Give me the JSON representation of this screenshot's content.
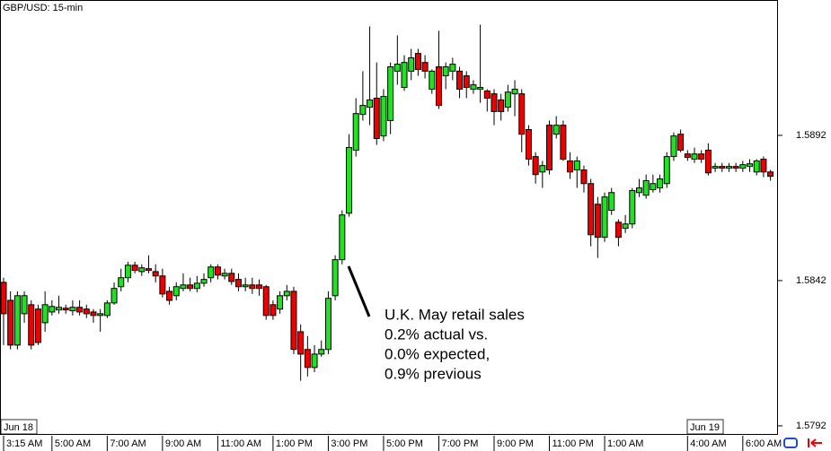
{
  "chart_data": {
    "type": "candlestick",
    "title": "GBP/USD: 15-min",
    "date_labels": [
      "Jun 18",
      "Jun 19"
    ],
    "annotation": [
      "U.K. May retail sales",
      "0.2% actual vs.",
      "0.0% expected,",
      "0.9% previous"
    ],
    "up_color": "#22e022",
    "down_color": "#ee0000",
    "ylim": [
      1.57892,
      1.59386
    ],
    "yticks": [
      1.5892,
      1.5842,
      1.5792
    ],
    "categories": [
      "3:15 AM",
      null,
      null,
      null,
      null,
      null,
      null,
      "5:00 AM",
      null,
      null,
      null,
      null,
      null,
      null,
      null,
      "7:00 AM",
      null,
      null,
      null,
      null,
      null,
      null,
      null,
      "9:00 AM",
      null,
      null,
      null,
      null,
      null,
      null,
      null,
      "11:00 AM",
      null,
      null,
      null,
      null,
      null,
      null,
      null,
      "1:00 PM",
      null,
      null,
      null,
      null,
      null,
      null,
      null,
      "3:00 PM",
      null,
      null,
      null,
      null,
      null,
      null,
      null,
      "5:00 PM",
      null,
      null,
      null,
      null,
      null,
      null,
      null,
      "7:00 PM",
      null,
      null,
      null,
      null,
      null,
      null,
      null,
      "9:00 PM",
      null,
      null,
      null,
      null,
      null,
      null,
      null,
      "11:00 PM",
      null,
      null,
      null,
      null,
      null,
      null,
      null,
      "1:00 AM",
      null,
      null,
      null,
      null,
      null,
      null,
      null,
      null,
      null,
      null,
      null,
      "4:00 AM",
      null,
      null,
      null,
      null,
      null,
      null,
      null,
      "6:00 AM",
      null,
      null,
      null,
      null
    ],
    "open": [
      1.58414,
      1.58352,
      1.58198,
      1.58306,
      1.58337,
      1.58322,
      1.58275,
      1.58312,
      1.58319,
      1.58325,
      1.58316,
      1.58328,
      1.58322,
      1.58312,
      1.583,
      1.583,
      1.58343,
      1.58399,
      1.5843,
      1.58473,
      1.58451,
      1.58461,
      1.58451,
      1.58436,
      1.58383,
      1.58368,
      1.58393,
      1.58405,
      1.58393,
      1.58411,
      1.5843,
      1.58467,
      1.58436,
      1.58445,
      1.58424,
      1.58399,
      1.58405,
      1.58405,
      1.58399,
      1.58337,
      1.58322,
      1.58368,
      1.58383,
      1.58244,
      1.58183,
      1.58121,
      1.58167,
      1.58183,
      1.58368,
      1.58492,
      1.58652,
      1.58869,
      1.58992,
      1.59017,
      1.59048,
      1.58918,
      1.58971,
      1.59141,
      1.59085,
      1.59141,
      1.59202,
      1.59171,
      1.59079,
      1.59156,
      1.59125,
      1.59141,
      1.59141,
      1.59125,
      1.59079,
      1.59079,
      1.59073,
      1.59063,
      1.59042,
      1.59017,
      1.59063,
      1.59063,
      1.5894,
      1.58847,
      1.58794,
      1.58955,
      1.58924,
      1.58955,
      1.58832,
      1.58801,
      1.58801,
      1.58754,
      1.58683,
      1.58569,
      1.58662,
      1.58621,
      1.586,
      1.58615,
      1.58723,
      1.58714,
      1.58733,
      1.58739,
      1.58754,
      1.58847,
      1.58924,
      1.58856,
      1.58838,
      1.58856,
      1.58869,
      1.58807,
      1.58813,
      1.58807,
      1.58813,
      1.58807,
      1.58813,
      1.58794,
      1.58838,
      1.58794
    ],
    "high": [
      1.5843,
      1.58383,
      1.58383,
      1.58383,
      1.58352,
      1.58337,
      1.58383,
      1.58352,
      1.58368,
      1.58337,
      1.58352,
      1.58352,
      1.58337,
      1.58322,
      1.58322,
      1.58352,
      1.58414,
      1.58461,
      1.58485,
      1.58485,
      1.58476,
      1.58507,
      1.58476,
      1.58461,
      1.58399,
      1.58414,
      1.58445,
      1.5843,
      1.58436,
      1.58445,
      1.58476,
      1.58476,
      1.58461,
      1.58461,
      1.58445,
      1.5843,
      1.5843,
      1.58424,
      1.58405,
      1.58352,
      1.58383,
      1.58405,
      1.58399,
      1.58269,
      1.58229,
      1.58198,
      1.58214,
      1.58383,
      1.58507,
      1.58662,
      1.58924,
      1.59048,
      1.59141,
      1.59295,
      1.59171,
      1.59079,
      1.59171,
      1.59264,
      1.59196,
      1.59218,
      1.59218,
      1.59196,
      1.59147,
      1.5928,
      1.59171,
      1.59187,
      1.59156,
      1.59141,
      1.5911,
      1.59301,
      1.59079,
      1.59079,
      1.59063,
      1.59094,
      1.5911,
      1.59079,
      1.58955,
      1.58862,
      1.58832,
      1.58971,
      1.58986,
      1.58971,
      1.58862,
      1.58847,
      1.58816,
      1.5877,
      1.58708,
      1.58723,
      1.58739,
      1.58631,
      1.58646,
      1.58739,
      1.5877,
      1.58785,
      1.58785,
      1.58785,
      1.58862,
      1.5893,
      1.5894,
      1.58869,
      1.58878,
      1.58869,
      1.58893,
      1.58825,
      1.58825,
      1.58825,
      1.58825,
      1.58832,
      1.58838,
      1.58838,
      1.58847,
      1.58801
    ],
    "low": [
      1.58198,
      1.58183,
      1.58183,
      1.58275,
      1.58183,
      1.58198,
      1.58244,
      1.583,
      1.58306,
      1.58306,
      1.583,
      1.583,
      1.58291,
      1.58275,
      1.58244,
      1.58291,
      1.58337,
      1.58383,
      1.58414,
      1.58445,
      1.58436,
      1.58445,
      1.58414,
      1.58362,
      1.58337,
      1.58352,
      1.58383,
      1.58383,
      1.5838,
      1.58399,
      1.58414,
      1.58424,
      1.58424,
      1.58405,
      1.58383,
      1.58383,
      1.58374,
      1.58368,
      1.58285,
      1.58285,
      1.58306,
      1.58352,
      1.58167,
      1.58075,
      1.5809,
      1.58105,
      1.58158,
      1.58167,
      1.58352,
      1.58476,
      1.5864,
      1.58847,
      1.58971,
      1.58955,
      1.58887,
      1.589,
      1.58924,
      1.59094,
      1.59073,
      1.5911,
      1.59125,
      1.59116,
      1.59063,
      1.59011,
      1.59079,
      1.5911,
      1.59048,
      1.59048,
      1.59063,
      1.59032,
      1.59002,
      1.58955,
      1.58971,
      1.59002,
      1.58986,
      1.58862,
      1.58816,
      1.58754,
      1.58739,
      1.58785,
      1.58909,
      1.58832,
      1.5877,
      1.58739,
      1.58723,
      1.58538,
      1.58498,
      1.58553,
      1.58646,
      1.58538,
      1.58584,
      1.586,
      1.58708,
      1.58702,
      1.58723,
      1.58723,
      1.58739,
      1.58832,
      1.58862,
      1.58832,
      1.58825,
      1.58825,
      1.58782,
      1.58794,
      1.58794,
      1.58794,
      1.58794,
      1.58794,
      1.58794,
      1.58782,
      1.58776,
      1.58764
    ],
    "close": [
      1.58306,
      1.58198,
      1.58368,
      1.58368,
      1.58198,
      1.58207,
      1.58337,
      1.58331,
      1.58328,
      1.58319,
      1.58328,
      1.58312,
      1.58306,
      1.583,
      1.58306,
      1.58343,
      1.58393,
      1.5843,
      1.58473,
      1.58455,
      1.58464,
      1.58455,
      1.58436,
      1.58374,
      1.58352,
      1.58399,
      1.58405,
      1.58393,
      1.58411,
      1.58424,
      1.58467,
      1.58439,
      1.58445,
      1.58417,
      1.58399,
      1.58405,
      1.58393,
      1.58393,
      1.583,
      1.583,
      1.58368,
      1.58383,
      1.58183,
      1.58167,
      1.58121,
      1.58167,
      1.58183,
      1.58359,
      1.58492,
      1.58646,
      1.58878,
      1.58995,
      1.59023,
      1.59042,
      1.58909,
      1.59054,
      1.59156,
      1.59165,
      1.59171,
      1.59187,
      1.59147,
      1.59141,
      1.59141,
      1.59023,
      1.59156,
      1.59165,
      1.59079,
      1.59085,
      1.59094,
      1.59085,
      1.59048,
      1.59002,
      1.59002,
      1.59069,
      1.59079,
      1.58924,
      1.58838,
      1.58785,
      1.58816,
      1.58801,
      1.58955,
      1.58838,
      1.58794,
      1.58832,
      1.58754,
      1.58578,
      1.58569,
      1.58708,
      1.58723,
      1.58569,
      1.58615,
      1.5873,
      1.58739,
      1.58764,
      1.58754,
      1.5877,
      1.58847,
      1.58918,
      1.58869,
      1.58844,
      1.58856,
      1.58838,
      1.58791,
      1.58813,
      1.58807,
      1.58813,
      1.58807,
      1.58819,
      1.58822,
      1.58832,
      1.58794,
      1.58779
    ]
  }
}
